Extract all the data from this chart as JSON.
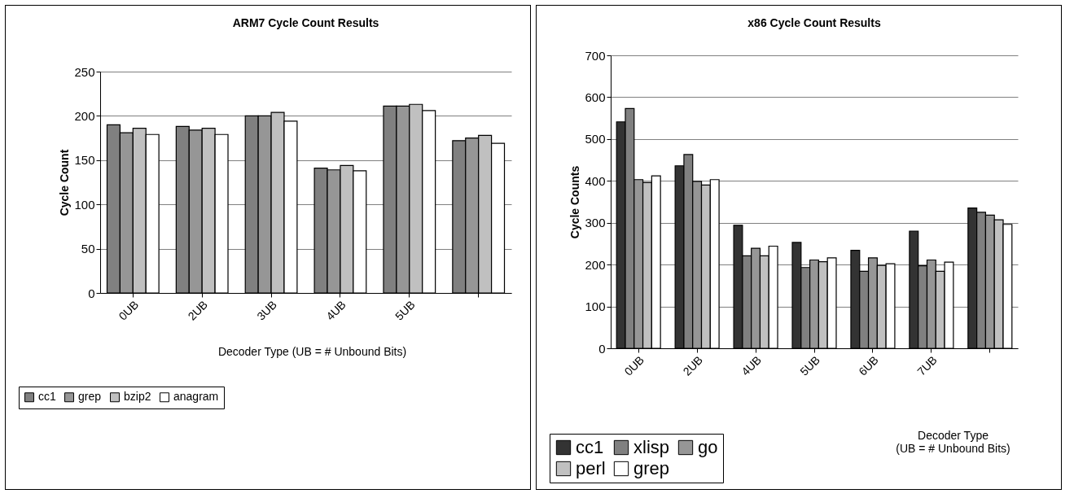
{
  "chart_data": [
    {
      "type": "bar",
      "title": "ARM7 Cycle Count Results",
      "xlabel": "Decoder Type  (UB = # Unbound Bits)",
      "ylabel": "Cycle Count",
      "categories": [
        "0UB",
        "2UB",
        "3UB",
        "4UB",
        "5UB",
        null
      ],
      "series": [
        {
          "name": "cc1",
          "color": "#808080",
          "values": [
            190,
            188,
            200,
            141,
            211,
            172
          ]
        },
        {
          "name": "grep",
          "color": "#969696",
          "values": [
            181,
            184,
            200,
            139,
            211,
            175
          ]
        },
        {
          "name": "bzip2",
          "color": "#c0c0c0",
          "values": [
            186,
            186,
            204,
            144,
            213,
            178
          ]
        },
        {
          "name": "anagram",
          "color": "#ffffff",
          "values": [
            179,
            179,
            194,
            138,
            206,
            169
          ]
        }
      ],
      "ylim": [
        0,
        250
      ],
      "yticks": [
        0,
        50,
        100,
        150,
        200,
        250
      ],
      "grid": "y",
      "legend": "bottom left"
    },
    {
      "type": "bar",
      "title": "x86 Cycle Count Results",
      "xlabel": "Decoder Type\n(UB = # Unbound Bits)",
      "ylabel": "Cycle Counts",
      "categories": [
        "0UB",
        "2UB",
        "4UB",
        "5UB",
        "6UB",
        "7UB",
        null
      ],
      "series": [
        {
          "name": "cc1",
          "color": "#333333",
          "values": [
            541,
            436,
            294,
            253,
            234,
            280,
            335
          ]
        },
        {
          "name": "xlisp",
          "color": "#808080",
          "values": [
            573,
            463,
            221,
            193,
            184,
            197,
            325
          ]
        },
        {
          "name": "go",
          "color": "#969696",
          "values": [
            403,
            399,
            239,
            211,
            216,
            211,
            318
          ]
        },
        {
          "name": "perl",
          "color": "#c0c0c0",
          "values": [
            396,
            390,
            221,
            207,
            198,
            184,
            307
          ]
        },
        {
          "name": "grep",
          "color": "#ffffff",
          "values": [
            412,
            403,
            244,
            216,
            202,
            206,
            296
          ]
        }
      ],
      "ylim": [
        0,
        700
      ],
      "yticks": [
        0,
        100,
        200,
        300,
        400,
        500,
        600,
        700
      ],
      "grid": "y",
      "legend": "bottom left"
    }
  ]
}
